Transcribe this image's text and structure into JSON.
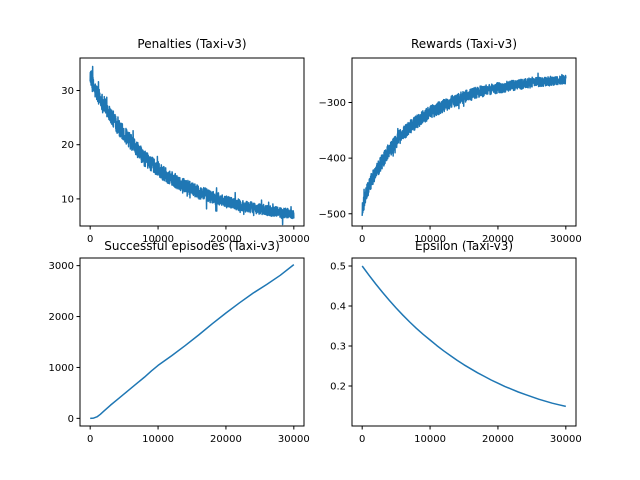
{
  "figure": {
    "background": "#ffffff",
    "line_color": "#1f77b4"
  },
  "chart_data": [
    {
      "type": "line",
      "title": "Penalties (Taxi-v3)",
      "xlim": [
        -1500,
        31500
      ],
      "ylim": [
        5,
        36
      ],
      "xticks": [
        0,
        10000,
        20000,
        30000
      ],
      "xtick_labels": [
        "0",
        "10000",
        "20000",
        "30000"
      ],
      "yticks": [
        10,
        20,
        30
      ],
      "ytick_labels": [
        "10",
        "20",
        "30"
      ],
      "grid": false,
      "noise": 1.6,
      "series": [
        {
          "x": [
            0,
            500,
            1000,
            2000,
            3000,
            4000,
            5000,
            6000,
            7000,
            8000,
            9000,
            10000,
            11000,
            12000,
            13000,
            14000,
            15000,
            16000,
            17000,
            18000,
            19000,
            20000,
            21000,
            22000,
            23000,
            24000,
            25000,
            26000,
            27000,
            28000,
            29000,
            30000
          ],
          "y": [
            33,
            30.5,
            29.5,
            27.5,
            25.5,
            23.5,
            22,
            20.5,
            19,
            17.5,
            16.5,
            15.5,
            14.5,
            13.8,
            13,
            12.4,
            11.8,
            11.2,
            10.8,
            10.3,
            9.9,
            9.5,
            9.2,
            8.9,
            8.6,
            8.4,
            8.1,
            7.9,
            7.7,
            7.5,
            7.4,
            7.2
          ],
          "color": "#1f77b4"
        }
      ]
    },
    {
      "type": "line",
      "title": "Rewards (Taxi-v3)",
      "xlim": [
        -1500,
        31500
      ],
      "ylim": [
        -522,
        -220
      ],
      "xticks": [
        0,
        10000,
        20000,
        30000
      ],
      "xtick_labels": [
        "0",
        "10000",
        "20000",
        "30000"
      ],
      "yticks": [
        -500,
        -400,
        -300
      ],
      "ytick_labels": [
        "−500",
        "−400",
        "−300"
      ],
      "grid": false,
      "noise": 14,
      "series": [
        {
          "x": [
            0,
            500,
            1000,
            2000,
            3000,
            4000,
            5000,
            6000,
            7000,
            8000,
            9000,
            10000,
            11000,
            12000,
            13000,
            14000,
            15000,
            16000,
            17000,
            18000,
            19000,
            20000,
            21000,
            22000,
            23000,
            24000,
            25000,
            26000,
            27000,
            28000,
            29000,
            30000
          ],
          "y": [
            -495,
            -465,
            -450,
            -425,
            -405,
            -385,
            -370,
            -355,
            -345,
            -335,
            -325,
            -318,
            -312,
            -306,
            -300,
            -295,
            -290,
            -286,
            -282,
            -279,
            -276,
            -274,
            -272,
            -270,
            -268,
            -266,
            -264,
            -263,
            -262,
            -261,
            -260,
            -259
          ],
          "color": "#1f77b4"
        }
      ]
    },
    {
      "type": "line",
      "title": "Successful episodes (Taxi-v3)",
      "xlim": [
        -1500,
        31500
      ],
      "ylim": [
        -150,
        3150
      ],
      "xticks": [
        0,
        10000,
        20000,
        30000
      ],
      "xtick_labels": [
        "0",
        "10000",
        "20000",
        "30000"
      ],
      "yticks": [
        0,
        1000,
        2000,
        3000
      ],
      "ytick_labels": [
        "0",
        "1000",
        "2000",
        "3000"
      ],
      "grid": false,
      "noise": 0,
      "series": [
        {
          "x": [
            0,
            500,
            1000,
            1500,
            2000,
            3000,
            4000,
            5000,
            6000,
            7000,
            8000,
            9000,
            10000,
            12000,
            14000,
            16000,
            18000,
            20000,
            22000,
            24000,
            26000,
            28000,
            30000
          ],
          "y": [
            0,
            5,
            30,
            80,
            140,
            260,
            370,
            480,
            590,
            700,
            810,
            930,
            1040,
            1230,
            1430,
            1640,
            1860,
            2070,
            2270,
            2460,
            2630,
            2810,
            3020
          ],
          "color": "#1f77b4"
        }
      ]
    },
    {
      "type": "line",
      "title": "Epsilon (Taxi-v3)",
      "xlim": [
        -1500,
        31500
      ],
      "ylim": [
        0.1,
        0.52
      ],
      "xticks": [
        0,
        10000,
        20000,
        30000
      ],
      "xtick_labels": [
        "0",
        "10000",
        "20000",
        "30000"
      ],
      "yticks": [
        0.2,
        0.3,
        0.4,
        0.5
      ],
      "ytick_labels": [
        "0.2",
        "0.3",
        "0.4",
        "0.5"
      ],
      "grid": false,
      "noise": 0,
      "series": [
        {
          "x": [
            0,
            1000,
            2000,
            3000,
            4000,
            5000,
            6000,
            7000,
            8000,
            9000,
            10000,
            11000,
            12000,
            13000,
            14000,
            15000,
            16000,
            17000,
            18000,
            19000,
            20000,
            21000,
            22000,
            23000,
            24000,
            25000,
            26000,
            27000,
            28000,
            29000,
            30000
          ],
          "y": [
            0.5,
            0.477,
            0.455,
            0.434,
            0.414,
            0.395,
            0.377,
            0.36,
            0.344,
            0.329,
            0.315,
            0.301,
            0.288,
            0.276,
            0.264,
            0.253,
            0.243,
            0.233,
            0.224,
            0.215,
            0.207,
            0.199,
            0.192,
            0.185,
            0.179,
            0.173,
            0.167,
            0.162,
            0.157,
            0.153,
            0.149
          ],
          "color": "#1f77b4"
        }
      ]
    }
  ]
}
